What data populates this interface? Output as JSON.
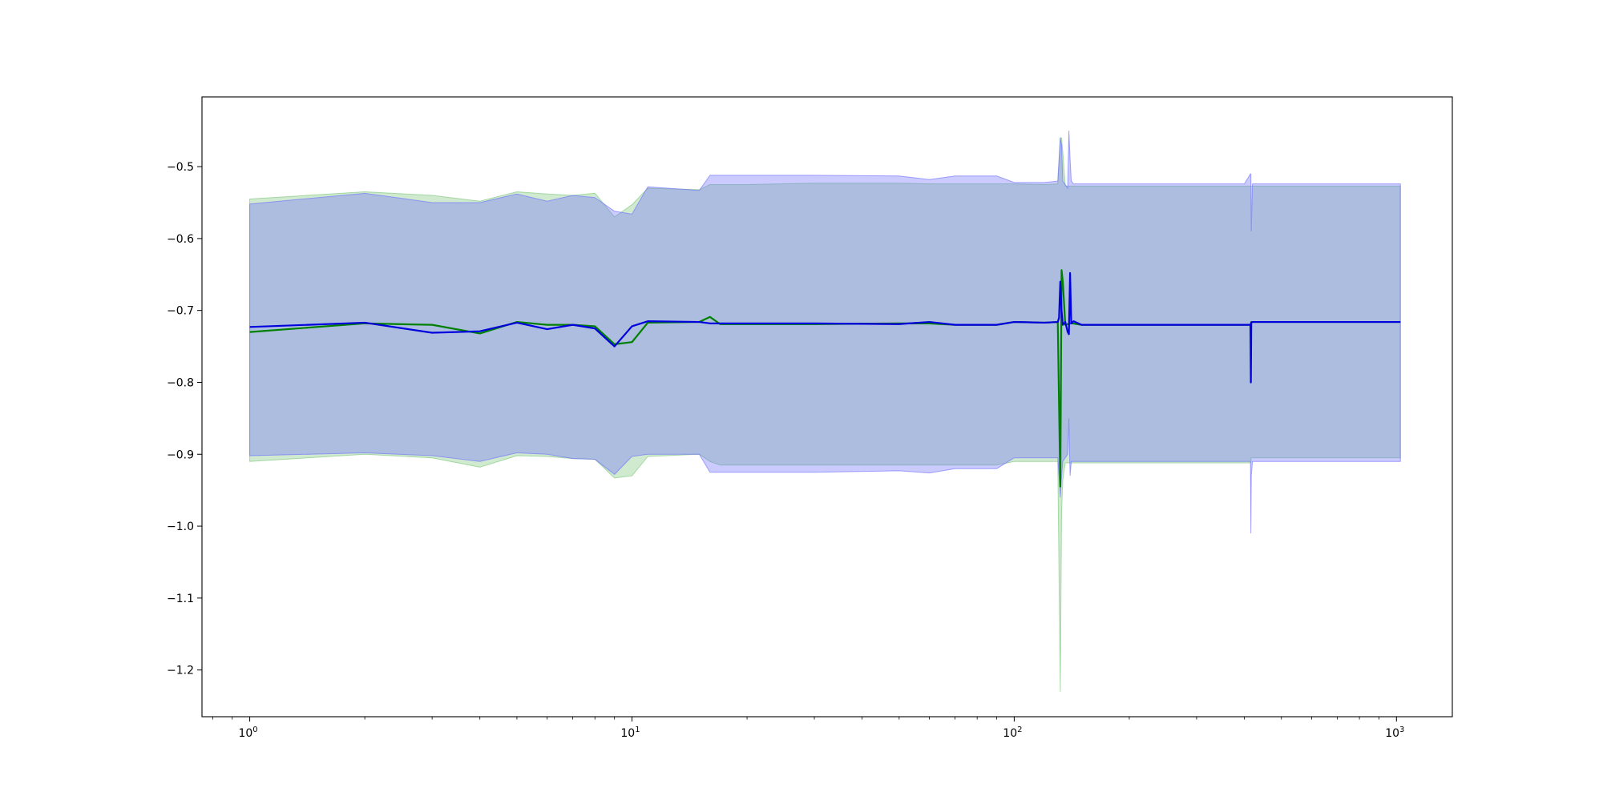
{
  "chart_data": {
    "type": "line",
    "title": "",
    "xlabel": "",
    "ylabel": "",
    "x_scale": "log",
    "xlim": [
      0.75,
      1400
    ],
    "ylim": [
      -1.265,
      -0.403
    ],
    "x_ticks": [
      {
        "value": 1,
        "base": "10",
        "exp": "0"
      },
      {
        "value": 10,
        "base": "10",
        "exp": "1"
      },
      {
        "value": 100,
        "base": "10",
        "exp": "2"
      },
      {
        "value": 1000,
        "base": "10",
        "exp": "3"
      }
    ],
    "y_ticks": [
      {
        "value": -0.5,
        "label": "−0.5"
      },
      {
        "value": -0.6,
        "label": "−0.6"
      },
      {
        "value": -0.7,
        "label": "−0.7"
      },
      {
        "value": -0.8,
        "label": "−0.8"
      },
      {
        "value": -0.9,
        "label": "−0.9"
      },
      {
        "value": -1.0,
        "label": "−1.0"
      },
      {
        "value": -1.1,
        "label": "−1.1"
      },
      {
        "value": -1.2,
        "label": "−1.2"
      }
    ],
    "grid": false,
    "legend": "none",
    "series": [
      {
        "color": "#008000",
        "band_color": "#77c477",
        "band_opacity": 0.35,
        "x": [
          1,
          2,
          3,
          4,
          5,
          6,
          7,
          8,
          9,
          10,
          11,
          15,
          16,
          17,
          20,
          30,
          50,
          60,
          70,
          90,
          100,
          120,
          130,
          132,
          133,
          134,
          136,
          140,
          142,
          150,
          170,
          200,
          300,
          400,
          415,
          416,
          417,
          420,
          500,
          700,
          1024
        ],
        "y": [
          -0.73,
          -0.718,
          -0.72,
          -0.732,
          -0.716,
          -0.72,
          -0.72,
          -0.722,
          -0.747,
          -0.744,
          -0.717,
          -0.716,
          -0.709,
          -0.719,
          -0.719,
          -0.719,
          -0.718,
          -0.718,
          -0.72,
          -0.72,
          -0.716,
          -0.717,
          -0.716,
          -0.945,
          -0.644,
          -0.66,
          -0.72,
          -0.718,
          -0.718,
          -0.72,
          -0.72,
          -0.72,
          -0.72,
          -0.72,
          -0.72,
          -0.718,
          -0.716,
          -0.716,
          -0.716,
          -0.716,
          -0.716
        ],
        "upper": [
          -0.545,
          -0.535,
          -0.54,
          -0.548,
          -0.535,
          -0.538,
          -0.54,
          -0.537,
          -0.57,
          -0.553,
          -0.53,
          -0.532,
          -0.525,
          -0.525,
          -0.525,
          -0.523,
          -0.523,
          -0.524,
          -0.524,
          -0.524,
          -0.524,
          -0.525,
          -0.524,
          -0.46,
          -0.46,
          -0.48,
          -0.527,
          -0.527,
          -0.527,
          -0.527,
          -0.527,
          -0.527,
          -0.527,
          -0.527,
          -0.527,
          -0.527,
          -0.527,
          -0.527,
          -0.527,
          -0.527,
          -0.527
        ],
        "lower": [
          -0.91,
          -0.9,
          -0.905,
          -0.918,
          -0.902,
          -0.903,
          -0.906,
          -0.907,
          -0.933,
          -0.93,
          -0.903,
          -0.9,
          -0.91,
          -0.915,
          -0.915,
          -0.915,
          -0.915,
          -0.915,
          -0.915,
          -0.915,
          -0.91,
          -0.91,
          -0.91,
          -1.23,
          -0.98,
          -0.935,
          -0.912,
          -0.912,
          -0.912,
          -0.912,
          -0.912,
          -0.912,
          -0.912,
          -0.912,
          -0.912,
          -0.91,
          -0.905,
          -0.905,
          -0.905,
          -0.905,
          -0.905
        ]
      },
      {
        "color": "#0000dd",
        "band_color": "#6b6bff",
        "band_opacity": 0.35,
        "x": [
          1,
          2,
          3,
          4,
          5,
          6,
          7,
          8,
          9,
          10,
          11,
          15,
          16,
          17,
          20,
          30,
          50,
          60,
          70,
          90,
          100,
          120,
          130,
          131,
          132,
          133,
          134,
          136,
          138,
          139,
          140,
          141,
          143,
          150,
          170,
          200,
          300,
          400,
          415,
          416,
          417,
          420,
          500,
          700,
          1024
        ],
        "y": [
          -0.723,
          -0.717,
          -0.731,
          -0.729,
          -0.717,
          -0.726,
          -0.72,
          -0.725,
          -0.75,
          -0.722,
          -0.715,
          -0.716,
          -0.718,
          -0.718,
          -0.718,
          -0.718,
          -0.719,
          -0.716,
          -0.72,
          -0.72,
          -0.716,
          -0.717,
          -0.716,
          -0.71,
          -0.66,
          -0.7,
          -0.72,
          -0.716,
          -0.73,
          -0.733,
          -0.648,
          -0.718,
          -0.715,
          -0.72,
          -0.72,
          -0.72,
          -0.72,
          -0.72,
          -0.72,
          -0.8,
          -0.717,
          -0.716,
          -0.716,
          -0.716,
          -0.716
        ],
        "upper": [
          -0.552,
          -0.537,
          -0.55,
          -0.55,
          -0.538,
          -0.548,
          -0.54,
          -0.543,
          -0.562,
          -0.566,
          -0.528,
          -0.533,
          -0.512,
          -0.512,
          -0.512,
          -0.512,
          -0.513,
          -0.518,
          -0.513,
          -0.513,
          -0.522,
          -0.522,
          -0.52,
          -0.49,
          -0.46,
          -0.47,
          -0.52,
          -0.525,
          -0.53,
          -0.45,
          -0.49,
          -0.52,
          -0.524,
          -0.524,
          -0.524,
          -0.524,
          -0.524,
          -0.524,
          -0.51,
          -0.51,
          -0.59,
          -0.524,
          -0.524,
          -0.524,
          -0.524
        ],
        "lower": [
          -0.902,
          -0.898,
          -0.902,
          -0.91,
          -0.898,
          -0.9,
          -0.906,
          -0.907,
          -0.928,
          -0.903,
          -0.9,
          -0.9,
          -0.925,
          -0.925,
          -0.925,
          -0.925,
          -0.923,
          -0.926,
          -0.92,
          -0.92,
          -0.905,
          -0.905,
          -0.905,
          -0.93,
          -0.96,
          -0.93,
          -0.91,
          -0.905,
          -0.9,
          -0.85,
          -0.93,
          -0.91,
          -0.91,
          -0.91,
          -0.91,
          -0.91,
          -0.91,
          -0.91,
          -0.91,
          -1.01,
          -0.93,
          -0.91,
          -0.91,
          -0.91,
          -0.91
        ]
      }
    ]
  }
}
